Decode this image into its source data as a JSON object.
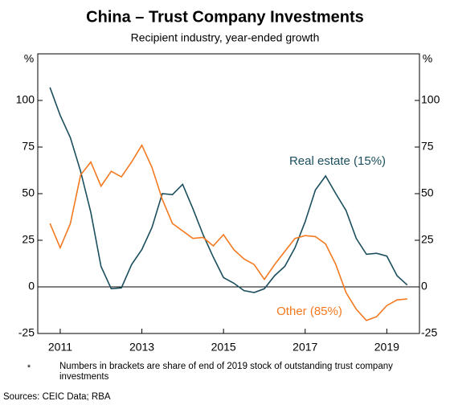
{
  "chart_data": {
    "type": "line",
    "title": "China – Trust Company Investments",
    "subtitle": "Recipient industry, year-ended growth",
    "y_unit": "%",
    "x": [
      2011.25,
      2011.5,
      2011.75,
      2012.0,
      2012.25,
      2012.5,
      2012.75,
      2013.0,
      2013.25,
      2013.5,
      2013.75,
      2014.0,
      2014.25,
      2014.5,
      2014.75,
      2015.0,
      2015.25,
      2015.5,
      2015.75,
      2016.0,
      2016.25,
      2016.5,
      2016.75,
      2017.0,
      2017.25,
      2017.5,
      2017.75,
      2018.0,
      2018.25,
      2018.5,
      2018.75,
      2019.0,
      2019.25,
      2019.5,
      2019.75,
      2020.0
    ],
    "series": [
      {
        "name": "Real estate (15%)",
        "color": "#1b4f5e",
        "values": [
          107,
          92,
          80,
          62,
          40,
          11,
          -1,
          -0.5,
          12,
          20,
          32,
          50,
          49.5,
          55,
          42,
          28,
          16,
          5,
          2,
          -2,
          -3,
          -1,
          6,
          11,
          21,
          35,
          52,
          59.5,
          50,
          41,
          26,
          17.5,
          18,
          16.5,
          6,
          1
        ]
      },
      {
        "name": "Other (85%)",
        "color": "#f47920",
        "values": [
          34,
          21,
          34,
          60,
          67,
          54,
          62,
          59,
          67,
          76,
          64,
          47,
          34,
          30,
          26,
          26.5,
          22,
          28,
          20,
          15,
          12,
          4,
          12,
          19,
          26,
          27.5,
          27,
          23,
          12,
          -3,
          -12,
          -18,
          -16,
          -10,
          -7,
          -6.5
        ]
      }
    ],
    "xlim": [
      2010.95,
      2020.3
    ],
    "xticks": [
      {
        "value": 2011.5,
        "label": "2011"
      },
      {
        "value": 2013.5,
        "label": "2013"
      },
      {
        "value": 2015.5,
        "label": "2015"
      },
      {
        "value": 2017.5,
        "label": "2017"
      },
      {
        "value": 2019.5,
        "label": "2019"
      }
    ],
    "ylim": [
      -25,
      125
    ],
    "yticks": [
      -25,
      0,
      25,
      50,
      75,
      100
    ],
    "footnote_marker": "*",
    "footnote": "Numbers in brackets are share of end of 2019 stock of outstanding trust company investments",
    "sources": "Sources: CEIC Data; RBA"
  }
}
